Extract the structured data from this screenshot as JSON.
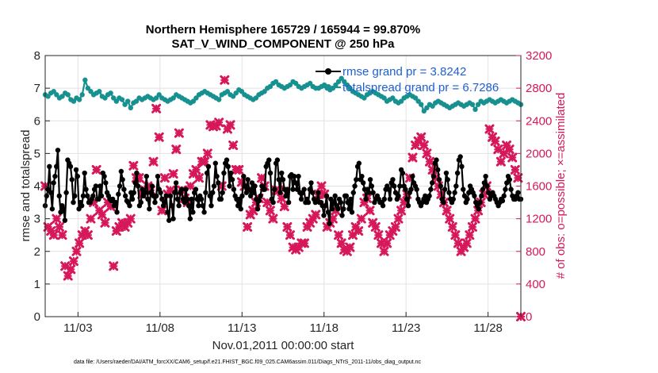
{
  "chart_data": {
    "type": "line",
    "title": "Northern Hemisphere 165729 / 165944 = 99.870%",
    "subtitle": "SAT_V_WIND_COMPONENT @ 250 hPa",
    "xlabel": "Nov.01,2011 00:00:00 start",
    "ylabel": "rmse and totalspread",
    "y2label": "# of obs: o=possible; ×=assimilated",
    "footnote": "data file: /Users/raeder/DAI/ATM_forcXX/CAM6_setup/f.e21.FHIST_BGC.f09_025.CAM6assim.011/Diags_NTrS_2011-11/obs_diag_output.nc",
    "xlim": [
      1.0,
      30.0
    ],
    "ylim": [
      0,
      8
    ],
    "y2lim": [
      0,
      3200
    ],
    "xticks": [
      3,
      8,
      13,
      18,
      23,
      28
    ],
    "xtick_labels": [
      "11/03",
      "11/08",
      "11/13",
      "11/18",
      "11/23",
      "11/28"
    ],
    "yticks": [
      0,
      1,
      2,
      3,
      4,
      5,
      6,
      7,
      8
    ],
    "y2ticks": [
      0,
      400,
      800,
      1200,
      1600,
      2000,
      2400,
      2800,
      3200
    ],
    "grid": true,
    "legend_position": "top-right",
    "legend": [
      "rmse grand pr = 3.8242",
      "totalspread grand pr = 6.7286"
    ],
    "colors": {
      "rmse": "#000000",
      "spread": "#17918f",
      "obs": "#d6185a"
    },
    "series": [
      {
        "name": "rmse grand pr = 3.8242",
        "axis": "left",
        "color": "#000000",
        "values": [
          3.4,
          3.7,
          3.9,
          4.6,
          3.8,
          3.3,
          4.1,
          4.3,
          4.6,
          5.1,
          3.7,
          3.2,
          3.4,
          3.3,
          2.95,
          3.8,
          4.8,
          4.7,
          4.6,
          4.2,
          3.5,
          3.7,
          4.5,
          4.3,
          3.3,
          3.5,
          3.4,
          3.7,
          4.4,
          3.9,
          3.7,
          3.5,
          3.5,
          3.6,
          3.7,
          3.9,
          4.0,
          3.6,
          3.6,
          4.0,
          3.7,
          4.4,
          4.3,
          4.1,
          3.8,
          3.7,
          3.6,
          3.55,
          3.6,
          3.4,
          3.5,
          3.2,
          3.75,
          4.0,
          4.45,
          4.2,
          3.9,
          3.7,
          3.55,
          3.5,
          3.4,
          3.8,
          3.6,
          3.8,
          4.1,
          4.4,
          4.0,
          3.4,
          3.5,
          3.9,
          3.7,
          3.8,
          4.3,
          3.6,
          3.3,
          3.8,
          4.0,
          3.7,
          3.5,
          3.7,
          4.3,
          3.9,
          3.8,
          3.6,
          3.4,
          3.5,
          3.7,
          3.2,
          2.95,
          3.7,
          3.4,
          3.0,
          3.8,
          4.1,
          3.6,
          3.4,
          3.8,
          3.9,
          3.6,
          3.5,
          3.9,
          3.6,
          3.4,
          3.0,
          3.6,
          3.2,
          3.8,
          3.9,
          3.6,
          3.4,
          3.7,
          3.6,
          3.4,
          3.2,
          3.8,
          4.4,
          4.6,
          3.7,
          3.4,
          3.8,
          4.0,
          4.7,
          4.3,
          4.1,
          3.6,
          3.6,
          3.8,
          4.4,
          4.7,
          4.8,
          4.6,
          4.0,
          4.4,
          4.2,
          3.9,
          3.7,
          3.6,
          3.4,
          3.6,
          3.3,
          3.7,
          4.3,
          4.0,
          3.8,
          4.2,
          3.9,
          3.7,
          4.1,
          3.8,
          4.0,
          3.6,
          3.3,
          3.55,
          3.7,
          4.0,
          3.9,
          3.9,
          4.6,
          4.7,
          4.8,
          4.4,
          3.6,
          3.5,
          3.9,
          4.7,
          4.8,
          4.2,
          3.8,
          4.4,
          4.2,
          3.9,
          3.7,
          3.9,
          3.5,
          4.3,
          4.35,
          3.9,
          4.3,
          4.1,
          3.9,
          4.3,
          3.8,
          3.6,
          3.8,
          3.9,
          3.5,
          3.6,
          3.5,
          3.9,
          4.1,
          3.8,
          3.6,
          3.5,
          3.55,
          3.8,
          3.5,
          3.5,
          3.4,
          3.1,
          3.4,
          3.7,
          3.2,
          2.85,
          3.6,
          3.3,
          3.5,
          3.7,
          3.4,
          3.3,
          3.6,
          3.5,
          3.1,
          3.3,
          3.7,
          3.7,
          3.5,
          3.3,
          3.6,
          3.2,
          3.8,
          4.0,
          4.2,
          4.6,
          4.7,
          4.2,
          4.3,
          4.1,
          3.9,
          3.6,
          3.9,
          3.8,
          4.2,
          4.0,
          3.8,
          3.5,
          3.6,
          3.7,
          3.6,
          3.5,
          3.5,
          3.4,
          3.6,
          3.9,
          4.0,
          3.9,
          3.6,
          4.1,
          4.2,
          4.0,
          3.8,
          3.6,
          3.7,
          4.0,
          4.5,
          4.4,
          4.0,
          3.9,
          3.6,
          3.4,
          3.8,
          3.9,
          4.3,
          4.1,
          4.0,
          3.9,
          3.6,
          3.5,
          3.4,
          3.5,
          3.6,
          3.7,
          3.5,
          3.6,
          3.7,
          3.9,
          4.1,
          4.3,
          4.7,
          4.8,
          4.5,
          4.2,
          4.0,
          3.6,
          3.5,
          3.9,
          4.4,
          4.2,
          3.8,
          3.6,
          3.5,
          3.6,
          3.8,
          4.0,
          4.4,
          4.8,
          4.9,
          4.6,
          3.9,
          3.7,
          3.5,
          3.6,
          3.8,
          4.0,
          3.9,
          3.8,
          3.7,
          3.5,
          3.4,
          3.3,
          3.5,
          3.7,
          3.9,
          4.1,
          4.3,
          4.0,
          3.8,
          3.6,
          3.7,
          3.8,
          3.7,
          3.6,
          3.5,
          3.4,
          3.5,
          3.6,
          3.55,
          3.7,
          3.9,
          4.1,
          4.3,
          4.2,
          3.9,
          3.7,
          3.6,
          3.6,
          3.7,
          3.8,
          3.6,
          3.6
        ],
        "x_start": 1.0,
        "x_end": 30.0
      },
      {
        "name": "totalspread grand pr = 6.7286",
        "axis": "left",
        "color": "#17918f",
        "values": [
          6.8,
          6.75,
          6.85,
          6.9,
          6.8,
          6.7,
          6.75,
          6.85,
          6.8,
          6.65,
          6.6,
          6.7,
          6.65,
          6.8,
          7.25,
          7.0,
          6.9,
          6.8,
          6.85,
          6.9,
          6.75,
          6.7,
          6.8,
          6.85,
          6.7,
          6.6,
          6.7,
          6.65,
          6.5,
          6.6,
          6.4,
          6.55,
          6.6,
          6.7,
          6.65,
          6.7,
          6.75,
          6.7,
          6.65,
          6.7,
          6.8,
          6.7,
          6.65,
          6.6,
          6.65,
          6.7,
          6.8,
          6.75,
          6.7,
          6.65,
          6.6,
          6.55,
          6.6,
          6.7,
          6.8,
          6.85,
          6.9,
          6.85,
          6.8,
          6.75,
          6.7,
          6.65,
          6.8,
          6.85,
          6.9,
          6.8,
          6.75,
          6.85,
          6.95,
          6.9,
          6.8,
          6.75,
          6.7,
          6.65,
          6.7,
          6.8,
          6.85,
          6.9,
          7.0,
          7.05,
          7.15,
          7.2,
          7.1,
          7.05,
          7.0,
          7.05,
          7.1,
          7.2,
          7.15,
          7.05,
          7.0,
          7.05,
          7.1,
          7.15,
          7.05,
          7.0,
          7.0,
          7.05,
          7.1,
          7.0,
          6.95,
          7.0,
          7.1,
          7.2,
          7.3,
          7.2,
          7.1,
          7.0,
          6.9,
          6.85,
          6.8,
          6.75,
          6.7,
          6.8,
          6.85,
          6.9,
          6.85,
          6.8,
          6.75,
          6.7,
          6.6,
          6.65,
          6.7,
          6.6,
          6.55,
          6.6,
          6.7,
          6.75,
          6.8,
          6.75,
          6.7,
          6.6,
          6.5,
          6.3,
          6.4,
          6.5,
          6.45,
          6.55,
          6.6,
          6.55,
          6.5,
          6.45,
          6.4,
          6.45,
          6.5,
          6.55,
          6.5,
          6.45,
          6.5,
          6.55,
          6.5,
          6.35,
          6.5,
          6.6,
          6.55,
          6.6,
          6.65,
          6.6,
          6.55,
          6.6,
          6.65,
          6.6,
          6.55,
          6.6,
          6.65,
          6.6,
          6.55,
          6.5
        ]
      },
      {
        "name": "",
        "axis": "right",
        "color": "#d6185a",
        "marker": "x",
        "values": [
          1600,
          1100,
          1050,
          1000,
          1200,
          1100,
          1000,
          620,
          500,
          580,
          680,
          800,
          900,
          1000,
          1050,
          1000,
          1200,
          1400,
          1800,
          1300,
          1250,
          1150,
          1400,
          1350,
          620,
          1050,
          1100,
          1150,
          1100,
          1150,
          1200,
          1850,
          1700,
          1700,
          1500,
          1550,
          1600,
          1550,
          1900,
          2550,
          2200,
          1300,
          1700,
          1500,
          1550,
          1750,
          2050,
          2250,
          1550,
          1450,
          1400,
          1600,
          1750,
          1800,
          1700,
          1900,
          1900,
          2000,
          2350,
          2330,
          2340,
          2380,
          1600,
          2900,
          2300,
          2350,
          2100,
          1800,
          1800,
          1650,
          1600,
          1100,
          1250,
          1300,
          1400,
          1450,
          1700,
          1600,
          1400,
          1300,
          1200,
          1550,
          1550,
          1450,
          1350,
          1100,
          1000,
          850,
          820,
          850,
          900,
          900,
          1100,
          1150,
          1200,
          1250,
          1500,
          1600,
          1500,
          1100,
          1150,
          1200,
          1300,
          1000,
          900,
          820,
          800,
          850,
          1000,
          1100,
          1050,
          1200,
          1400,
          1450,
          1300,
          1150,
          1100,
          1000,
          900,
          800,
          900,
          1000,
          1050,
          1100,
          1200,
          1300,
          1400,
          1500,
          1700,
          1950,
          2100,
          2150,
          2200,
          2100,
          2000,
          1900,
          1800,
          1700,
          1600,
          1500,
          1400,
          1300,
          1200,
          1100,
          1000,
          900,
          800,
          850,
          900,
          1000,
          1100,
          1200,
          1300,
          1400,
          1500,
          1600,
          2300,
          2200,
          2150,
          2050,
          1900,
          2000,
          2100,
          2050,
          1950,
          1800,
          1700,
          0
        ],
        "x_start": 1.0,
        "x_end": 30.0
      }
    ]
  }
}
